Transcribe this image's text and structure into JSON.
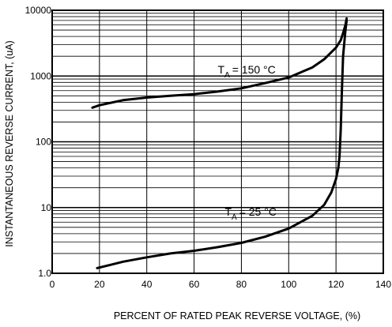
{
  "chart_data": {
    "type": "line",
    "title": "",
    "xlabel": "PERCENT OF RATED PEAK REVERSE VOLTAGE, (%)",
    "ylabel": "INSTANTANEOUS REVERSE CURRENT, (uA)",
    "xlim": [
      0,
      140
    ],
    "ylim": [
      1,
      10000
    ],
    "yscale": "log",
    "grid": true,
    "x_ticks": [
      "0",
      "20",
      "40",
      "60",
      "80",
      "100",
      "120",
      "140"
    ],
    "y_ticks": [
      "1.0",
      "10",
      "100",
      "1000",
      "10000"
    ],
    "series": [
      {
        "label_main": "T",
        "label_sub": "A",
        "label_rest": "= 150 °C",
        "x": [
          17,
          20,
          30,
          40,
          50,
          60,
          70,
          80,
          90,
          100,
          110,
          115,
          120,
          122,
          123,
          124,
          124.5
        ],
        "y": [
          330,
          360,
          430,
          470,
          500,
          530,
          580,
          650,
          780,
          950,
          1350,
          1800,
          2700,
          3500,
          4500,
          6000,
          7500
        ]
      },
      {
        "label_main": "T",
        "label_sub": "A",
        "label_rest": "=  25 °C",
        "x": [
          19,
          25,
          30,
          40,
          50,
          60,
          70,
          80,
          90,
          100,
          110,
          115,
          118,
          120,
          121,
          121.5,
          122,
          122.5,
          123,
          124,
          124.5
        ],
        "y": [
          1.2,
          1.35,
          1.5,
          1.75,
          2.0,
          2.2,
          2.5,
          2.9,
          3.6,
          4.8,
          7.5,
          11,
          17,
          27,
          40,
          60,
          150,
          600,
          2000,
          5000,
          7000
        ]
      }
    ]
  }
}
